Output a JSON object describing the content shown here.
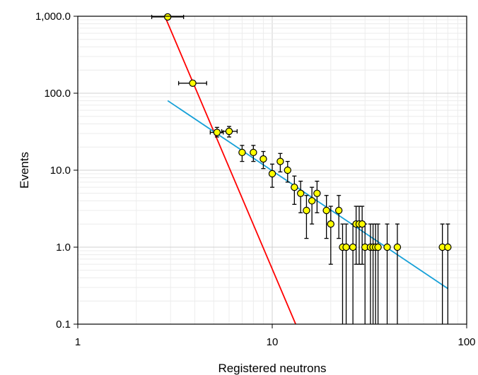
{
  "chart_data": {
    "type": "scatter",
    "title": "",
    "xlabel": "Registered neutrons",
    "ylabel": "Events",
    "x_scale": "log",
    "y_scale": "log",
    "xlim": [
      1,
      100
    ],
    "ylim": [
      0.1,
      1000
    ],
    "grid": true,
    "legend": "none",
    "x_ticks": [
      {
        "value": 1,
        "label": "1"
      },
      {
        "value": 10,
        "label": "10"
      },
      {
        "value": 100,
        "label": "100"
      }
    ],
    "y_ticks": [
      {
        "value": 0.1,
        "label": "0.1"
      },
      {
        "value": 1,
        "label": "1.0"
      },
      {
        "value": 10,
        "label": "10.0"
      },
      {
        "value": 100,
        "label": "100.0"
      },
      {
        "value": 1000,
        "label": "1,000.0"
      }
    ],
    "points": [
      {
        "x": 2.9,
        "y": 980,
        "xerr": [
          2.4,
          3.5
        ]
      },
      {
        "x": 3.9,
        "y": 135,
        "xerr": [
          3.3,
          4.6
        ]
      },
      {
        "x": 5.2,
        "y": 31,
        "xerr": [
          4.8,
          5.6
        ],
        "yerr": [
          27,
          36
        ]
      },
      {
        "x": 6.0,
        "y": 32,
        "xerr": [
          5.5,
          6.6
        ],
        "yerr": [
          27,
          37
        ]
      },
      {
        "x": 7.0,
        "y": 17,
        "yerr": [
          13,
          21
        ]
      },
      {
        "x": 8.0,
        "y": 17,
        "yerr": [
          13,
          21
        ]
      },
      {
        "x": 9.0,
        "y": 14,
        "yerr": [
          10.5,
          17.5
        ]
      },
      {
        "x": 10.0,
        "y": 9,
        "yerr": [
          6,
          12
        ]
      },
      {
        "x": 11.0,
        "y": 13,
        "yerr": [
          9.5,
          16.5
        ]
      },
      {
        "x": 12.0,
        "y": 10,
        "yerr": [
          7,
          13
        ]
      },
      {
        "x": 13.0,
        "y": 6,
        "yerr": [
          3.6,
          8.4
        ]
      },
      {
        "x": 14.0,
        "y": 5,
        "yerr": [
          2.8,
          7.2
        ]
      },
      {
        "x": 15.0,
        "y": 3,
        "yerr": [
          1.3,
          4.7
        ]
      },
      {
        "x": 16.0,
        "y": 4,
        "yerr": [
          2,
          6
        ]
      },
      {
        "x": 17.0,
        "y": 5,
        "yerr": [
          2.8,
          7.2
        ]
      },
      {
        "x": 19.0,
        "y": 3,
        "yerr": [
          1.3,
          4.7
        ]
      },
      {
        "x": 20.0,
        "y": 2,
        "yerr": [
          0.6,
          3.4
        ]
      },
      {
        "x": 22.0,
        "y": 3,
        "yerr": [
          1.3,
          4.7
        ]
      },
      {
        "x": 23.0,
        "y": 1,
        "yerr": [
          0.1,
          2
        ]
      },
      {
        "x": 24.0,
        "y": 1,
        "yerr": [
          0.1,
          2
        ]
      },
      {
        "x": 26.0,
        "y": 1,
        "yerr": [
          0.1,
          2
        ]
      },
      {
        "x": 27.0,
        "y": 2,
        "yerr": [
          0.6,
          3.4
        ]
      },
      {
        "x": 28.0,
        "y": 2,
        "yerr": [
          0.6,
          3.4
        ]
      },
      {
        "x": 29.0,
        "y": 2,
        "yerr": [
          0.6,
          3.4
        ]
      },
      {
        "x": 30.0,
        "y": 1,
        "yerr": [
          0.1,
          2
        ]
      },
      {
        "x": 32.0,
        "y": 1,
        "yerr": [
          0.1,
          2
        ]
      },
      {
        "x": 33.0,
        "y": 1,
        "yerr": [
          0.1,
          2
        ]
      },
      {
        "x": 34.0,
        "y": 1,
        "yerr": [
          0.1,
          2
        ]
      },
      {
        "x": 35.0,
        "y": 1,
        "yerr": [
          0.1,
          2
        ]
      },
      {
        "x": 39.0,
        "y": 1,
        "yerr": [
          0.1,
          2
        ]
      },
      {
        "x": 44.0,
        "y": 1,
        "yerr": [
          0.1,
          2
        ]
      },
      {
        "x": 75.0,
        "y": 1,
        "yerr": [
          0.1,
          2
        ]
      },
      {
        "x": 80.0,
        "y": 1,
        "yerr": [
          0.1,
          2
        ]
      }
    ],
    "fit_lines": [
      {
        "color": "#ff0000",
        "from": [
          2.7,
          1250
        ],
        "to": [
          13.2,
          0.1
        ]
      },
      {
        "color": "#16a0d8",
        "from": [
          2.9,
          80
        ],
        "to": [
          80,
          0.29
        ]
      }
    ],
    "colors": {
      "marker_fill": "#ffff00",
      "marker_stroke": "#000000",
      "error_bars": "#000000",
      "grid_major": "#d0d0d0",
      "grid_minor": "#ececec"
    }
  }
}
